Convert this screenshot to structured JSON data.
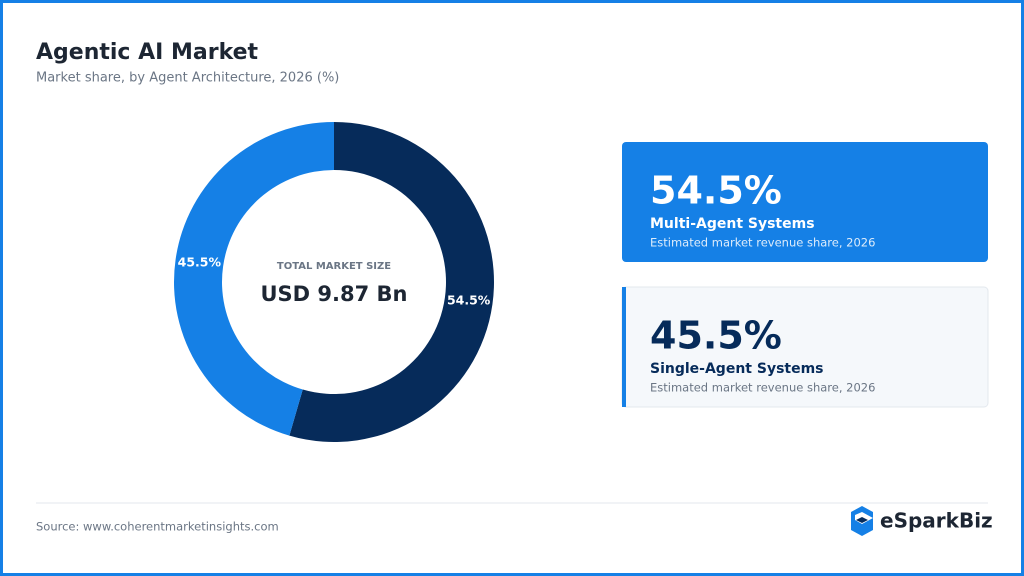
{
  "chart_data": {
    "type": "donut",
    "title": "Agentic AI Market",
    "subtitle": "Market share, by Agent Architecture, 2026 (%)",
    "center_label": "TOTAL MARKET SIZE",
    "center_value": "USD 9.87 Bn",
    "categories": [
      "Multi-Agent Systems",
      "Single-Agent Systems"
    ],
    "values": [
      54.5,
      45.5
    ],
    "value_labels": [
      "54.5%",
      "45.5%"
    ],
    "colors": [
      "#062b5a",
      "#1580e6"
    ],
    "card_note": "Estimated market revenue share, 2026"
  },
  "footer": {
    "source": "Source: www.coherentmarketinsights.com",
    "brand": "eSparkBiz"
  }
}
